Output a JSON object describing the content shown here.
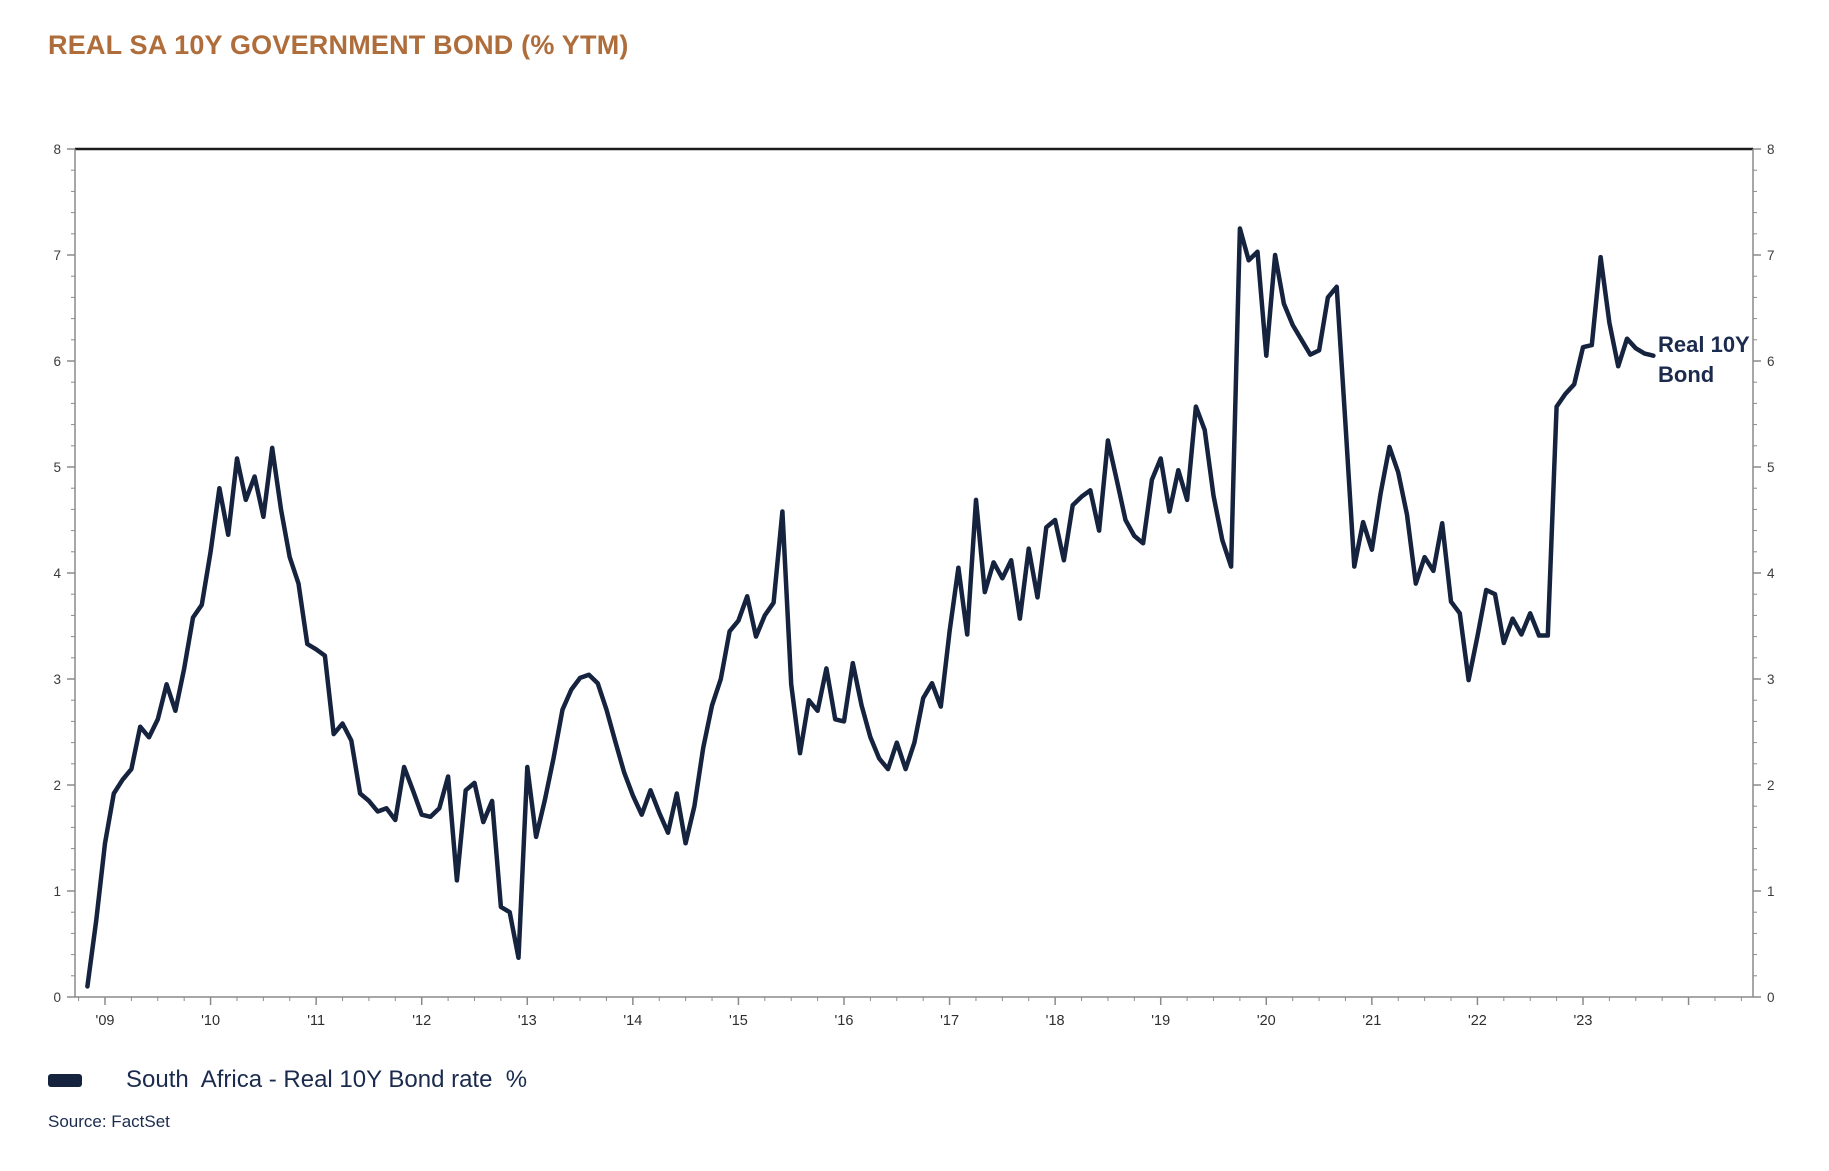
{
  "title": "REAL SA 10Y GOVERNMENT BOND (% YTM)",
  "source": "Source: FactSet",
  "legend": {
    "label": "South  Africa - Real 10Y Bond rate  %"
  },
  "callout": {
    "line1": "Real 10Y",
    "line2": "Bond"
  },
  "colors": {
    "title": "#ae6d3b",
    "line": "#16233e",
    "navy_text": "#1b2b4d",
    "axis_line": "#8a8a8a",
    "frame_top": "#1c1c1c",
    "y_tick_text": "#3b3b3b",
    "x_tick_text": "#2e2e2e"
  },
  "chart_data": {
    "type": "line",
    "title": "REAL SA 10Y GOVERNMENT BOND (% YTM)",
    "xlabel": "",
    "ylabel": "",
    "ylim": [
      0,
      8
    ],
    "y_major_ticks": [
      0,
      1,
      2,
      3,
      4,
      5,
      6,
      7,
      8
    ],
    "y_minor_step": 0.2,
    "y_labels_both_sides": true,
    "grid": false,
    "legend_position": "bottom",
    "x_tick_labels": [
      "'09",
      "'10",
      "'11",
      "'12",
      "'13",
      "'14",
      "'15",
      "'16",
      "'17",
      "'18",
      "'19",
      "'20",
      "'21",
      "'22",
      "'23"
    ],
    "x_minor_tick": "quarterly",
    "series": [
      {
        "name": "South Africa - Real 10Y Bond rate %",
        "start": "2008-11",
        "frequency": "monthly",
        "start_offset_months": -2,
        "end_label": "Real 10Y Bond",
        "last_value": 6.05,
        "values": [
          0.1,
          0.72,
          1.45,
          1.92,
          2.05,
          2.15,
          2.55,
          2.45,
          2.62,
          2.95,
          2.7,
          3.1,
          3.58,
          3.7,
          4.2,
          4.8,
          4.36,
          5.08,
          4.69,
          4.91,
          4.53,
          5.18,
          4.6,
          4.15,
          3.9,
          3.33,
          3.28,
          3.22,
          2.48,
          2.58,
          2.42,
          1.92,
          1.85,
          1.75,
          1.78,
          1.67,
          2.17,
          1.95,
          1.72,
          1.7,
          1.78,
          2.08,
          1.1,
          1.95,
          2.02,
          1.65,
          1.85,
          0.85,
          0.8,
          0.37,
          2.17,
          1.51,
          1.86,
          2.26,
          2.71,
          2.9,
          3.01,
          3.04,
          2.96,
          2.71,
          2.41,
          2.12,
          1.9,
          1.72,
          1.95,
          1.74,
          1.55,
          1.92,
          1.45,
          1.8,
          2.35,
          2.75,
          3.0,
          3.45,
          3.55,
          3.78,
          3.4,
          3.6,
          3.72,
          4.58,
          2.95,
          2.3,
          2.8,
          2.7,
          3.1,
          2.62,
          2.6,
          3.15,
          2.75,
          2.45,
          2.25,
          2.15,
          2.4,
          2.15,
          2.4,
          2.82,
          2.96,
          2.74,
          3.45,
          4.05,
          3.42,
          4.69,
          3.82,
          4.1,
          3.95,
          4.12,
          3.57,
          4.23,
          3.77,
          4.43,
          4.5,
          4.12,
          4.64,
          4.72,
          4.78,
          4.4,
          5.25,
          4.88,
          4.5,
          4.35,
          4.28,
          4.88,
          5.08,
          4.58,
          4.97,
          4.69,
          5.57,
          5.35,
          4.73,
          4.31,
          4.06,
          7.25,
          6.95,
          7.03,
          6.05,
          7.0,
          6.54,
          6.34,
          6.2,
          6.06,
          6.1,
          6.6,
          6.7,
          5.4,
          4.06,
          4.48,
          4.22,
          4.75,
          5.19,
          4.95,
          4.55,
          3.9,
          4.15,
          4.02,
          4.47,
          3.73,
          3.62,
          2.99,
          3.4,
          3.84,
          3.8,
          3.34,
          3.57,
          3.42,
          3.62,
          3.41,
          3.41,
          5.57,
          5.69,
          5.78,
          6.13,
          6.15,
          6.98,
          6.36,
          5.95,
          6.21,
          6.12,
          6.07,
          6.05
        ]
      }
    ]
  }
}
